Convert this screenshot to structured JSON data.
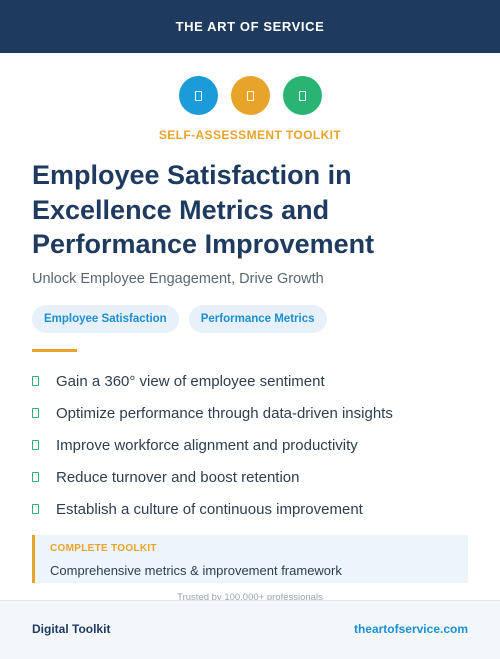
{
  "header": {
    "brand": "THE ART OF SERVICE",
    "background": "#1e3a5f"
  },
  "icons": [
    {
      "name": "icon-blue",
      "color": "#1b9bd7"
    },
    {
      "name": "icon-orange",
      "color": "#e8a32a"
    },
    {
      "name": "icon-green",
      "color": "#29b474"
    }
  ],
  "eyebrow": "SELF-ASSESSMENT TOOLKIT",
  "title": "Employee Satisfaction in Excellence Metrics and Performance Improvement",
  "subtitle": "Unlock Employee Engagement, Drive Growth",
  "tags": [
    "Employee Satisfaction",
    "Performance Metrics"
  ],
  "benefits": [
    "Gain a 360° view of employee sentiment",
    "Optimize performance through data-driven insights",
    "Improve workforce alignment and productivity",
    "Reduce turnover and boost retention",
    "Establish a culture of continuous improvement"
  ],
  "callout": {
    "label": "COMPLETE TOOLKIT",
    "text": "Comprehensive metrics & improvement framework"
  },
  "trusted": "Trusted by 100,000+ professionals",
  "footer": {
    "left": "Digital Toolkit",
    "right": "theartofservice.com"
  },
  "colors": {
    "accent": "#e8a32a",
    "link": "#1b8fd2",
    "check": "#29b474"
  }
}
